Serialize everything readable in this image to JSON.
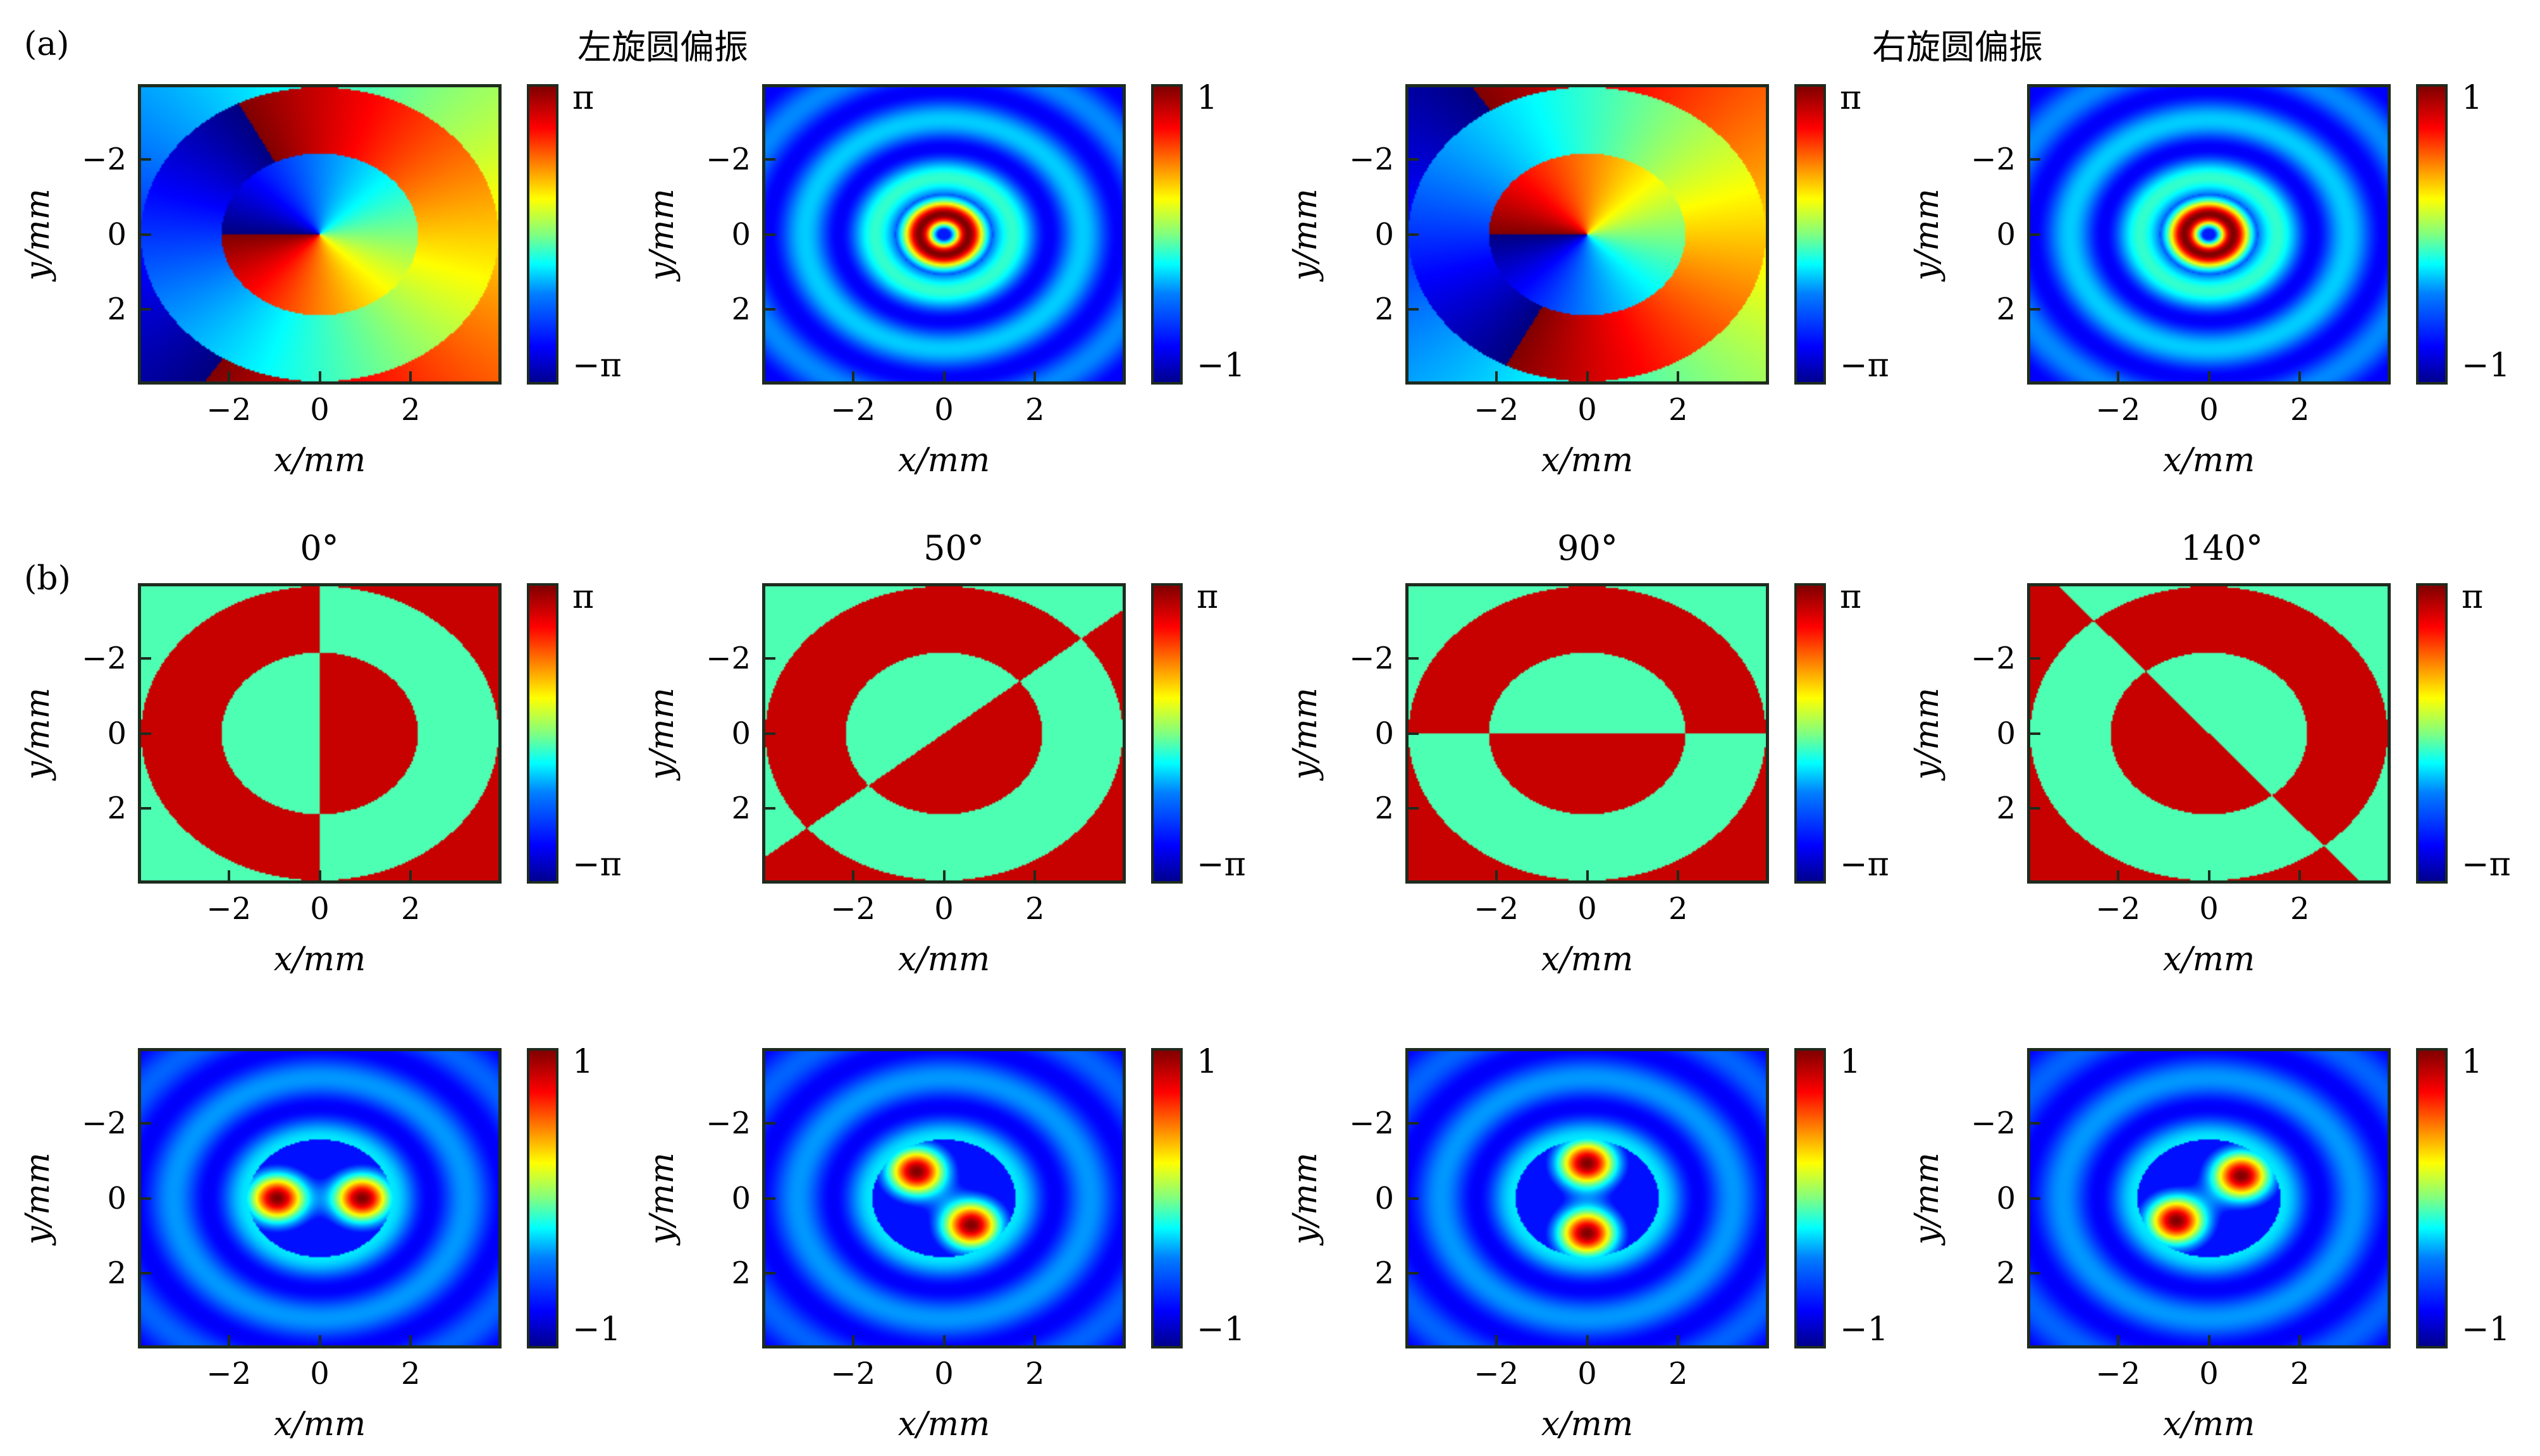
{
  "figure": {
    "panel_labels": [
      "(a)",
      "(b)"
    ],
    "row_a_titles": [
      "左旋圆偏振",
      "右旋圆偏振"
    ],
    "row_b_titles": [
      "0°",
      "50°",
      "90°",
      "140°"
    ]
  },
  "chart_data": [
    {
      "type": "heatmap",
      "id": "a1",
      "quantity": "phase",
      "pattern": "vortex-ring-left",
      "colorbar_ticks": [
        "π",
        "−π"
      ],
      "xlabel": "x/mm",
      "ylabel": "y/mm",
      "xticks": [
        -2,
        0,
        2
      ],
      "yticks": [
        -2,
        0,
        2
      ],
      "xlim": [
        -4,
        4
      ],
      "ylim": [
        -4,
        4
      ]
    },
    {
      "type": "heatmap",
      "id": "a2",
      "quantity": "intensity",
      "pattern": "donut",
      "colorbar_ticks": [
        "1",
        "−1"
      ],
      "xlabel": "x/mm",
      "ylabel": "y/mm",
      "xticks": [
        -2,
        0,
        2
      ],
      "yticks": [
        -2,
        0,
        2
      ],
      "xlim": [
        -4,
        4
      ],
      "ylim": [
        -4,
        4
      ]
    },
    {
      "type": "heatmap",
      "id": "a3",
      "quantity": "phase",
      "pattern": "vortex-ring-right",
      "colorbar_ticks": [
        "π",
        "−π"
      ],
      "xlabel": "x/mm",
      "ylabel": "y/mm",
      "xticks": [
        -2,
        0,
        2
      ],
      "yticks": [
        -2,
        0,
        2
      ],
      "xlim": [
        -4,
        4
      ],
      "ylim": [
        -4,
        4
      ]
    },
    {
      "type": "heatmap",
      "id": "a4",
      "quantity": "intensity",
      "pattern": "donut",
      "colorbar_ticks": [
        "1",
        "−1"
      ],
      "xlabel": "x/mm",
      "ylabel": "y/mm",
      "xticks": [
        -2,
        0,
        2
      ],
      "yticks": [
        -2,
        0,
        2
      ],
      "xlim": [
        -4,
        4
      ],
      "ylim": [
        -4,
        4
      ]
    },
    {
      "type": "heatmap",
      "id": "b1",
      "quantity": "phase",
      "angle_deg": 0,
      "colorbar_ticks": [
        "π",
        "−π"
      ],
      "xlabel": "x/mm",
      "ylabel": "y/mm",
      "xticks": [
        -2,
        0,
        2
      ],
      "yticks": [
        -2,
        0,
        2
      ],
      "xlim": [
        -4,
        4
      ],
      "ylim": [
        -4,
        4
      ]
    },
    {
      "type": "heatmap",
      "id": "b2",
      "quantity": "phase",
      "angle_deg": 50,
      "colorbar_ticks": [
        "π",
        "−π"
      ],
      "xlabel": "x/mm",
      "ylabel": "y/mm",
      "xticks": [
        -2,
        0,
        2
      ],
      "yticks": [
        -2,
        0,
        2
      ],
      "xlim": [
        -4,
        4
      ],
      "ylim": [
        -4,
        4
      ]
    },
    {
      "type": "heatmap",
      "id": "b3",
      "quantity": "phase",
      "angle_deg": 90,
      "colorbar_ticks": [
        "π",
        "−π"
      ],
      "xlabel": "x/mm",
      "ylabel": "y/mm",
      "xticks": [
        -2,
        0,
        2
      ],
      "yticks": [
        -2,
        0,
        2
      ],
      "xlim": [
        -4,
        4
      ],
      "ylim": [
        -4,
        4
      ]
    },
    {
      "type": "heatmap",
      "id": "b4",
      "quantity": "phase",
      "angle_deg": 140,
      "colorbar_ticks": [
        "π",
        "−π"
      ],
      "xlabel": "x/mm",
      "ylabel": "y/mm",
      "xticks": [
        -2,
        0,
        2
      ],
      "yticks": [
        -2,
        0,
        2
      ],
      "xlim": [
        -4,
        4
      ],
      "ylim": [
        -4,
        4
      ]
    },
    {
      "type": "heatmap",
      "id": "c1",
      "quantity": "intensity",
      "angle_deg": 0,
      "colorbar_ticks": [
        "1",
        "−1"
      ],
      "xlabel": "x/mm",
      "ylabel": "y/mm",
      "xticks": [
        -2,
        0,
        2
      ],
      "yticks": [
        -2,
        0,
        2
      ],
      "xlim": [
        -4,
        4
      ],
      "ylim": [
        -4,
        4
      ]
    },
    {
      "type": "heatmap",
      "id": "c2",
      "quantity": "intensity",
      "angle_deg": 50,
      "colorbar_ticks": [
        "1",
        "−1"
      ],
      "xlabel": "x/mm",
      "ylabel": "y/mm",
      "xticks": [
        -2,
        0,
        2
      ],
      "yticks": [
        -2,
        0,
        2
      ],
      "xlim": [
        -4,
        4
      ],
      "ylim": [
        -4,
        4
      ]
    },
    {
      "type": "heatmap",
      "id": "c3",
      "quantity": "intensity",
      "angle_deg": 90,
      "colorbar_ticks": [
        "1",
        "−1"
      ],
      "xlabel": "x/mm",
      "ylabel": "y/mm",
      "xticks": [
        -2,
        0,
        2
      ],
      "yticks": [
        -2,
        0,
        2
      ],
      "xlim": [
        -4,
        4
      ],
      "ylim": [
        -4,
        4
      ]
    },
    {
      "type": "heatmap",
      "id": "c4",
      "quantity": "intensity",
      "angle_deg": 140,
      "colorbar_ticks": [
        "1",
        "−1"
      ],
      "xlabel": "x/mm",
      "ylabel": "y/mm",
      "xticks": [
        -2,
        0,
        2
      ],
      "yticks": [
        -2,
        0,
        2
      ],
      "xlim": [
        -4,
        4
      ],
      "ylim": [
        -4,
        4
      ]
    }
  ]
}
